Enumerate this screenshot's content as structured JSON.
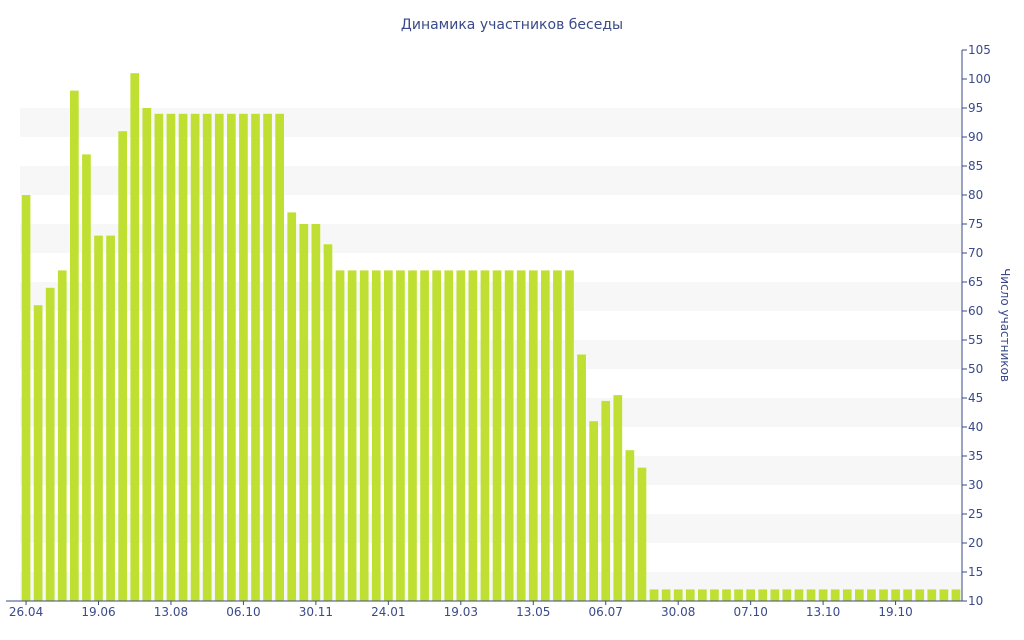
{
  "chart_data": {
    "type": "bar",
    "title": "Динамика участников беседы",
    "ylabel": "Число участников",
    "xlabel": "",
    "ylim": [
      10,
      105
    ],
    "ytick_step": 5,
    "y_axis_position": "right",
    "grid": "alternating horizontal bands",
    "legend": "none",
    "bar_color": "#bfe032",
    "band_color": "#f7f7f7",
    "text_color": "#3a4a8a",
    "x_tick_labels": [
      {
        "index": 0,
        "label": "26.04"
      },
      {
        "index": 6,
        "label": "19.06"
      },
      {
        "index": 12,
        "label": "13.08"
      },
      {
        "index": 18,
        "label": "06.10"
      },
      {
        "index": 24,
        "label": "30.11"
      },
      {
        "index": 30,
        "label": "24.01"
      },
      {
        "index": 36,
        "label": "19.03"
      },
      {
        "index": 42,
        "label": "13.05"
      },
      {
        "index": 48,
        "label": "06.07"
      },
      {
        "index": 54,
        "label": "30.08"
      },
      {
        "index": 60,
        "label": "07.10"
      },
      {
        "index": 66,
        "label": "13.10"
      },
      {
        "index": 72,
        "label": "19.10"
      }
    ],
    "values": [
      80,
      61,
      64,
      67,
      98,
      87,
      73,
      73,
      91,
      101,
      95,
      94,
      94,
      94,
      94,
      94,
      94,
      94,
      94,
      94,
      94,
      94,
      77,
      75,
      75,
      71.5,
      67,
      67,
      67,
      67,
      67,
      67,
      67,
      67,
      67,
      67,
      67,
      67,
      67,
      67,
      67,
      67,
      67,
      67,
      67,
      67,
      52.5,
      41,
      44.5,
      45.5,
      36,
      33,
      12,
      12,
      12,
      12,
      12,
      12,
      12,
      12,
      12,
      12,
      12,
      12,
      12,
      12,
      12,
      12,
      12,
      12,
      12,
      12,
      12,
      12,
      12,
      12,
      12,
      12
    ]
  }
}
